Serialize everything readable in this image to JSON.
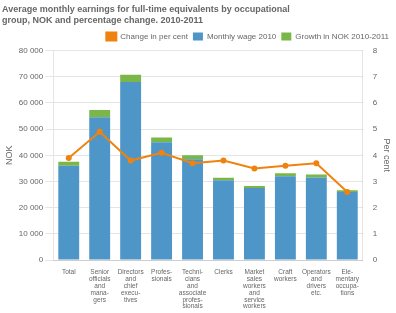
{
  "chart_data": {
    "type": "bar",
    "title": [
      "Average monthly earnings for full-time equivalents by occupational",
      "group, NOK and percentage change. 2010-2011"
    ],
    "ylabel": "NOK",
    "y2label": "Per cent",
    "categories": [
      "Total",
      "Senior\nofficials\nand\nmana-\ngers",
      "Directors\nand\nchief\nexecu-\ntives",
      "Profes-\nsionals",
      "Techni-\ncians\nand\nassociate\nprofes-\nsionals",
      "Clerks",
      "Market\nsales\nworkers\nand\nservice\nworkers",
      "Craft\nworkers",
      "Operators\nand\ndrivers\netc.",
      "Ele-\nmentary\noccupa-\ntions"
    ],
    "series": [
      {
        "name": "Monthly wage 2010",
        "color": "#4f96c8",
        "values": [
          36000,
          54500,
          68000,
          45000,
          38500,
          30500,
          27500,
          32000,
          31500,
          26000
        ]
      },
      {
        "name": "Growth in NOK 2010-2011",
        "color": "#7ab648",
        "values": [
          1500,
          2800,
          2800,
          1800,
          1500,
          900,
          800,
          1200,
          1200,
          700
        ]
      },
      {
        "name": "Change in per cent",
        "type": "line",
        "axis": "y2",
        "color": "#f0820f",
        "values": [
          3.9,
          4.9,
          3.8,
          4.1,
          3.7,
          3.8,
          3.5,
          3.6,
          3.7,
          2.6
        ]
      }
    ],
    "stacked": true,
    "ylim": [
      0,
      80000
    ],
    "yticks": [
      0,
      {
        "value": 10000,
        "label": "10 000"
      },
      {
        "value": 20000,
        "label": "20 000"
      },
      {
        "value": 30000,
        "label": "30 000"
      },
      {
        "value": 40000,
        "label": "40 000"
      },
      {
        "value": 50000,
        "label": "50 000"
      },
      {
        "value": 60000,
        "label": "60 000"
      },
      {
        "value": 70000,
        "label": "70 000"
      },
      {
        "value": 80000,
        "label": "80 000"
      }
    ],
    "y2lim": [
      0,
      8
    ],
    "y2ticks": [
      0,
      1,
      2,
      3,
      4,
      5,
      6,
      7,
      8
    ],
    "grid": true,
    "legend": "upper right"
  }
}
